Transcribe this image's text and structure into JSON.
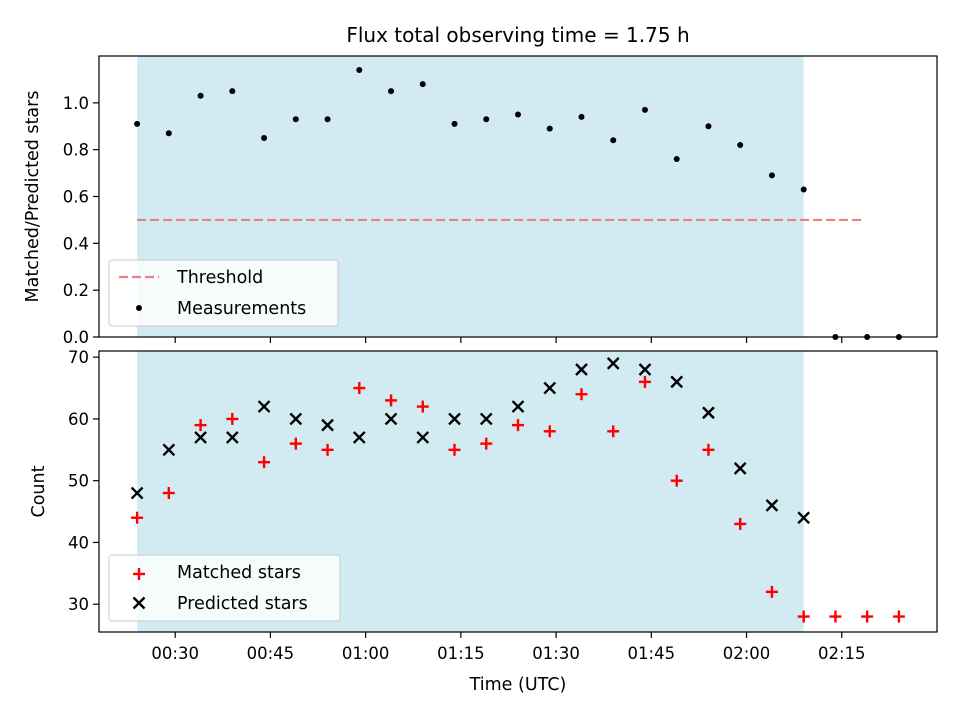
{
  "colors": {
    "band": "#add8e6",
    "threshold": "#f08080",
    "matched": "#ff0000",
    "predicted": "#000000",
    "measurement": "#000000"
  },
  "chart_data": [
    {
      "type": "scatter",
      "title": "Flux total observing time = 1.75 h",
      "xlabel": "",
      "ylabel": "Matched/Predicted stars",
      "ylim": [
        0,
        1.2
      ],
      "yticks": [
        "0.0",
        "0.2",
        "0.4",
        "0.6",
        "0.8",
        "1.0"
      ],
      "x_axis": "time (minutes after 00:00 UTC), shared with lower panel",
      "band": {
        "from": 24,
        "to": 129
      },
      "legend": {
        "placement": "lower-left",
        "entries": [
          "Threshold",
          "Measurements"
        ]
      },
      "threshold": {
        "name": "Threshold",
        "value": 0.5,
        "from": 24,
        "to": 138.5
      },
      "series": [
        {
          "name": "Measurements",
          "x": [
            24,
            29,
            34,
            39,
            44,
            49,
            54,
            59,
            64,
            69,
            74,
            79,
            84,
            89,
            94,
            99,
            104,
            109,
            114,
            119,
            124,
            129,
            134,
            139,
            144
          ],
          "values": [
            0.91,
            0.87,
            1.03,
            1.05,
            0.85,
            0.93,
            0.93,
            1.14,
            1.05,
            1.08,
            0.91,
            0.93,
            0.95,
            0.89,
            0.94,
            0.84,
            0.97,
            0.76,
            0.9,
            0.82,
            0.69,
            0.63,
            0,
            0,
            0
          ]
        }
      ]
    },
    {
      "type": "scatter",
      "title": "",
      "xlabel": "Time (UTC)",
      "ylabel": "Count",
      "ylim": [
        25.5,
        71
      ],
      "yticks": [
        30,
        40,
        50,
        60,
        70
      ],
      "xlim": [
        18,
        150
      ],
      "xtick_labels": [
        "00:30",
        "00:45",
        "01:00",
        "01:15",
        "01:30",
        "01:45",
        "02:00",
        "02:15"
      ],
      "xtick_values": [
        30,
        45,
        60,
        75,
        90,
        105,
        120,
        135
      ],
      "band": {
        "from": 24,
        "to": 129
      },
      "legend": {
        "placement": "lower-left",
        "entries": [
          "Matched stars",
          "Predicted stars"
        ]
      },
      "series": [
        {
          "name": "Matched stars",
          "marker": "plus",
          "x": [
            24,
            29,
            34,
            39,
            44,
            49,
            54,
            59,
            64,
            69,
            74,
            79,
            84,
            89,
            94,
            99,
            104,
            109,
            114,
            119,
            124,
            129,
            134,
            139,
            144
          ],
          "values": [
            44,
            48,
            59,
            60,
            53,
            56,
            55,
            65,
            63,
            62,
            55,
            56,
            59,
            58,
            64,
            58,
            66,
            50,
            55,
            43,
            32,
            28,
            28,
            28,
            28
          ]
        },
        {
          "name": "Predicted stars",
          "marker": "x",
          "x": [
            24,
            29,
            34,
            39,
            44,
            49,
            54,
            59,
            64,
            69,
            74,
            79,
            84,
            89,
            94,
            99,
            104,
            109,
            114,
            119,
            124,
            129
          ],
          "values": [
            48,
            55,
            57,
            57,
            62,
            60,
            59,
            57,
            60,
            57,
            60,
            60,
            62,
            65,
            68,
            69,
            68,
            66,
            61,
            52,
            46,
            44
          ]
        }
      ]
    }
  ]
}
